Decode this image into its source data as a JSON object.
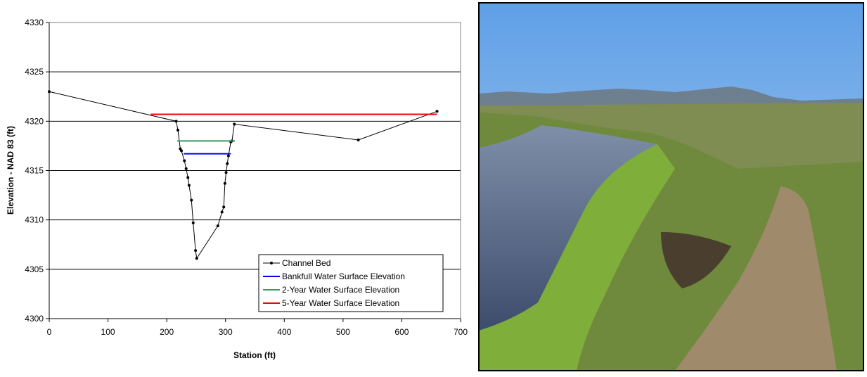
{
  "chart_data": {
    "type": "line",
    "xlabel": "Station (ft)",
    "ylabel": "Elevation - NAD 83 (ft)",
    "xlim": [
      0,
      700
    ],
    "xticks": [
      0,
      100,
      200,
      300,
      400,
      500,
      600,
      700
    ],
    "ylim": [
      4300,
      4330
    ],
    "yticks": [
      4300,
      4305,
      4310,
      4315,
      4320,
      4325,
      4330
    ],
    "grid": true,
    "legend": "lower right",
    "series": [
      {
        "name": "Channel Bed",
        "color": "#000000",
        "markers": true,
        "x": [
          0,
          216,
          219,
          223,
          225,
          230,
          233,
          236,
          238,
          242,
          245,
          249,
          251,
          287,
          294,
          297,
          299,
          301,
          303,
          305,
          309,
          311,
          315,
          526,
          660
        ],
        "values": [
          4323.0,
          4320.0,
          4319.1,
          4317.2,
          4317.0,
          4316.0,
          4315.2,
          4314.3,
          4313.5,
          4312.0,
          4309.7,
          4306.9,
          4306.1,
          4309.4,
          4310.8,
          4311.3,
          4313.7,
          4314.8,
          4315.7,
          4316.5,
          4317.9,
          4318.0,
          4319.7,
          4318.1,
          4321.0
        ]
      },
      {
        "name": "Bankfull Water Surface Elevation",
        "color": "#0000ff",
        "markers": false,
        "x": [
          229,
          309
        ],
        "values": [
          4316.7,
          4316.7
        ]
      },
      {
        "name": "2-Year Water Surface Elevation",
        "color": "#339966",
        "markers": false,
        "x": [
          218,
          316
        ],
        "values": [
          4318.0,
          4318.0
        ]
      },
      {
        "name": "5-Year Water Surface Elevation",
        "color": "#ff0000",
        "markers": false,
        "x": [
          173,
          660
        ],
        "values": [
          4320.7,
          4320.7
        ]
      }
    ]
  }
}
